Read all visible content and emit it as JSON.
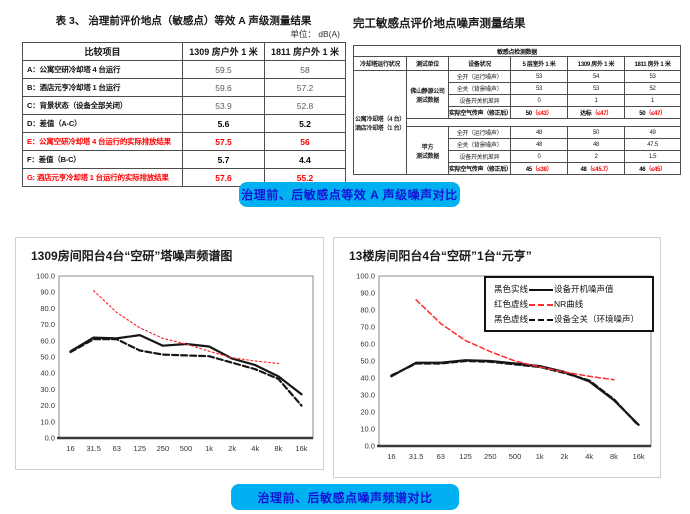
{
  "colors": {
    "banner_bg": "#00B0F0",
    "banner_text": "#1414D8",
    "highlight_red": "#FF0000",
    "line_black": "#161616",
    "line_red": "#FF2A2A"
  },
  "banners": {
    "equivalent": "治理前、后敏感点等效 A 声级噪声对比",
    "spectrum": "治理前、后敏感点噪声频谱对比"
  },
  "left_table": {
    "title": "表 3、  治理前评价地点（敏感点）等效 A 声级测量结果",
    "unit_label": "单位：  dB(A)",
    "headers": [
      "比较项目",
      "1309 房户外 1 米",
      "1811 房户外 1 米"
    ],
    "rows": [
      {
        "label": "A：公寓空研冷却塔 4 台运行",
        "v1": "59.5",
        "v2": "58",
        "style": "normal"
      },
      {
        "label": "B：酒店元亨冷却塔 1 台运行",
        "v1": "59.6",
        "v2": "57.2",
        "style": "normal"
      },
      {
        "label": "C：背景状态（设备全部关闭）",
        "v1": "53.9",
        "v2": "52.8",
        "style": "normal"
      },
      {
        "label": "D：差值（A-C）",
        "v1": "5.6",
        "v2": "5.2",
        "style": "bold"
      },
      {
        "label": "E：公寓空研冷却塔 4 台运行的实际排放结果",
        "v1": "57.5",
        "v2": "56",
        "style": "red"
      },
      {
        "label": "F：差值（B-C）",
        "v1": "5.7",
        "v2": "4.4",
        "style": "bold"
      },
      {
        "label": "G: 酒店元亨冷却塔 1 台运行的实际排放结果",
        "v1": "57.6",
        "v2": "55.2",
        "style": "red"
      }
    ]
  },
  "right_table": {
    "title": "完工敏感点评价地点噪声测量结果",
    "group_header": "敏感点检测数据",
    "headers": [
      "冷却塔运行状况",
      "测试单位",
      "设备状况",
      "5 层室外 1 米",
      "1309 房外 1 米",
      "1811 房外 1 米"
    ],
    "row_group": [
      "公寓冷却塔（4 台）",
      "酒店冷却塔（1 台）"
    ],
    "units": [
      {
        "name": [
          "佛山静源公司",
          "测试数据"
        ],
        "rows": [
          {
            "label": "全开（运行噪声）",
            "values": [
              "53",
              "54",
              "53"
            ]
          },
          {
            "label": "全关（背景噪声）",
            "values": [
              "53",
              "53",
              "52"
            ]
          },
          {
            "label": "设备开关机差异",
            "values": [
              "0",
              "1",
              "1"
            ]
          },
          {
            "label": "实际空气传声（修正后）",
            "emph": true,
            "values": [
              {
                "n": "50",
                "r": "（≤43）"
              },
              {
                "n": "达标",
                "r": "（≤47）"
              },
              {
                "n": "50",
                "r": "（≤47）"
              }
            ]
          }
        ]
      },
      {
        "name": [
          "甲方",
          "测试数据"
        ],
        "rows": [
          {
            "label": "全开（运行噪声）",
            "values": [
              "48",
              "50",
              "49"
            ]
          },
          {
            "label": "全关（背景噪声）",
            "values": [
              "48",
              "48",
              "47.5"
            ]
          },
          {
            "label": "设备开关机差异",
            "values": [
              "0",
              "2",
              "1.5"
            ]
          },
          {
            "label": "实际空气传声（修正后）",
            "emph": true,
            "values": [
              {
                "n": "45",
                "r": "（≤38）"
              },
              {
                "n": "48",
                "r": "（≤45.7）"
              },
              {
                "n": "46",
                "r": "（≤45）"
              }
            ]
          }
        ]
      }
    ]
  },
  "chart_data": [
    {
      "type": "line",
      "title": "1309房间阳台4台“空研”塔噪声频谱图",
      "categories": [
        "16",
        "31.5",
        "63",
        "125",
        "250",
        "500",
        "1k",
        "2k",
        "4k",
        "8k",
        "16k"
      ],
      "ylim": [
        0,
        100
      ],
      "ytick_step": 10,
      "grid": false,
      "legend": null,
      "series": [
        {
          "name": "设备开机噪声值",
          "style": "black-solid",
          "values": [
            53.5,
            62,
            61.5,
            63.5,
            57,
            58,
            56.5,
            49,
            45,
            38,
            27
          ]
        },
        {
          "name": "设备全关（环境噪声）",
          "style": "black-dashed",
          "values": [
            53,
            61,
            61,
            54,
            51.5,
            51,
            50.5,
            46.5,
            42.5,
            36.5,
            20
          ]
        },
        {
          "name": "NR曲线",
          "style": "red-dotted",
          "values": [
            null,
            91,
            77.5,
            68,
            61.5,
            58,
            53.5,
            49.5,
            47.5,
            46,
            null
          ]
        }
      ]
    },
    {
      "type": "line",
      "title": "13楼房间阳台4台“空研”1台“元亨”",
      "categories": [
        "16",
        "31.5",
        "63",
        "125",
        "250",
        "500",
        "1k",
        "2k",
        "4k",
        "8k",
        "16k"
      ],
      "ylim": [
        0,
        100
      ],
      "ytick_step": 10,
      "grid": false,
      "legend": [
        {
          "pre": "黑色实线",
          "sample": "black-solid",
          "post": "设备开机噪声值"
        },
        {
          "pre": "红色虚线",
          "sample": "red-dashed",
          "post": "NR曲线"
        },
        {
          "pre": "黑色虚线",
          "sample": "black-dashed",
          "post": "设备全关（环境噪声）"
        }
      ],
      "series": [
        {
          "name": "设备开机噪声值",
          "style": "black-solid",
          "values": [
            41,
            49,
            49,
            50.5,
            50,
            48.5,
            47,
            43.5,
            38,
            27,
            12.5
          ]
        },
        {
          "name": "设备全关（环境噪声）",
          "style": "black-dashed",
          "values": [
            41.5,
            48.5,
            48.5,
            50,
            49.5,
            48,
            46.5,
            43,
            38.5,
            27.5,
            12
          ]
        },
        {
          "name": "NR曲线",
          "style": "red-dashed",
          "values": [
            null,
            86,
            72,
            62,
            55.5,
            50,
            46.5,
            43.5,
            41,
            39,
            null
          ]
        }
      ]
    }
  ]
}
